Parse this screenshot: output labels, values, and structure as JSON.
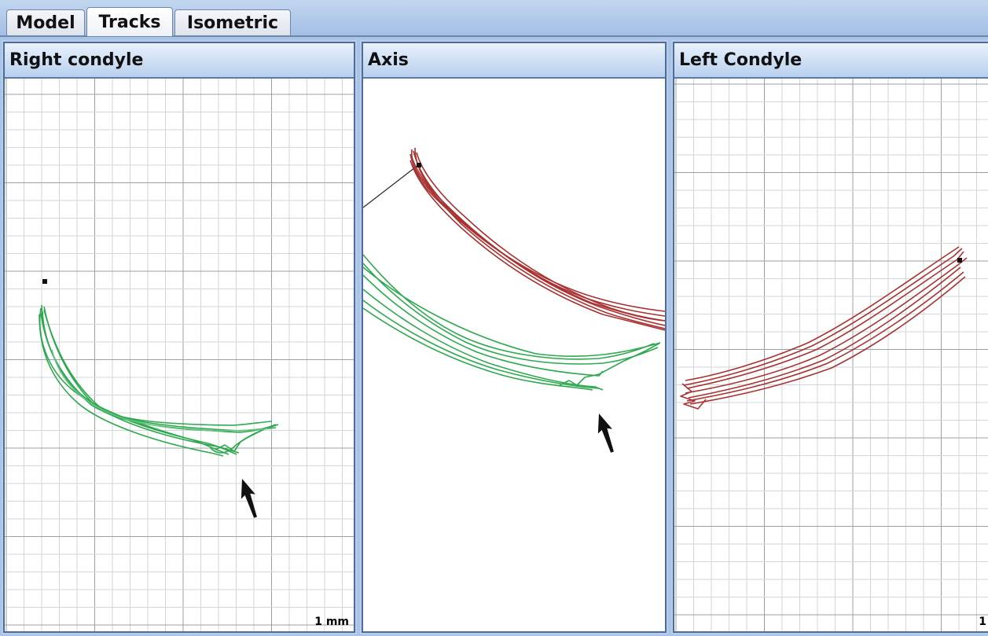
{
  "tabs": [
    {
      "label": "Model"
    },
    {
      "label": "Tracks",
      "active": true
    },
    {
      "label": "Isometric"
    }
  ],
  "panels": {
    "right_condyle": {
      "title": "Right condyle",
      "track_color": "#2ea84f",
      "scale_label": "1 mm"
    },
    "axis": {
      "title": "Axis",
      "track_colors": [
        "#a83232",
        "#2ea84f"
      ]
    },
    "left_condyle": {
      "title": "Left Condyle",
      "track_color": "#a83232",
      "scale_label": "1"
    }
  }
}
